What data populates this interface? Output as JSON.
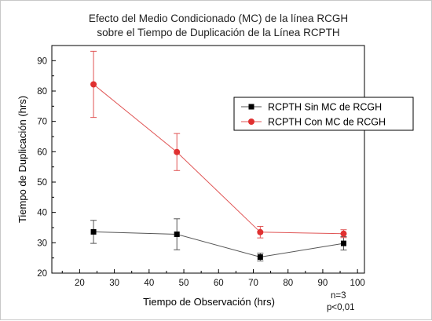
{
  "chart_data": {
    "type": "line",
    "title": "Efecto del Medio Condicionado (MC) de la línea RCGH",
    "subtitle": "sobre el Tiempo de Duplicación de la Línea RCPTH",
    "xlabel": "Tiempo de Observación (hrs)",
    "ylabel": "Tiempo de Duplicación (hrs)",
    "xlim": [
      12,
      102
    ],
    "ylim": [
      20,
      95
    ],
    "x_ticks": [
      20,
      30,
      40,
      50,
      60,
      70,
      80,
      90,
      100
    ],
    "y_ticks": [
      20,
      30,
      40,
      50,
      60,
      70,
      80,
      90
    ],
    "grid": false,
    "legend_position": "top-right",
    "series": [
      {
        "name": "RCPTH Sin MC de RCGH",
        "color": "#555555",
        "marker": "square",
        "marker_color": "#000000",
        "x": [
          24,
          48,
          72,
          96
        ],
        "y": [
          33.6,
          32.8,
          25.3,
          29.8
        ],
        "error": [
          3.8,
          5.1,
          1.3,
          2.2
        ]
      },
      {
        "name": "RCPTH Con MC de RCGH",
        "color": "#e05555",
        "marker": "circle",
        "marker_color": "#e03030",
        "x": [
          24,
          48,
          72,
          96
        ],
        "y": [
          82.2,
          59.9,
          33.5,
          33.0
        ],
        "error": [
          10.9,
          6.1,
          1.9,
          1.3
        ]
      }
    ],
    "annotations": [
      "n=3",
      "p<0,01"
    ]
  }
}
